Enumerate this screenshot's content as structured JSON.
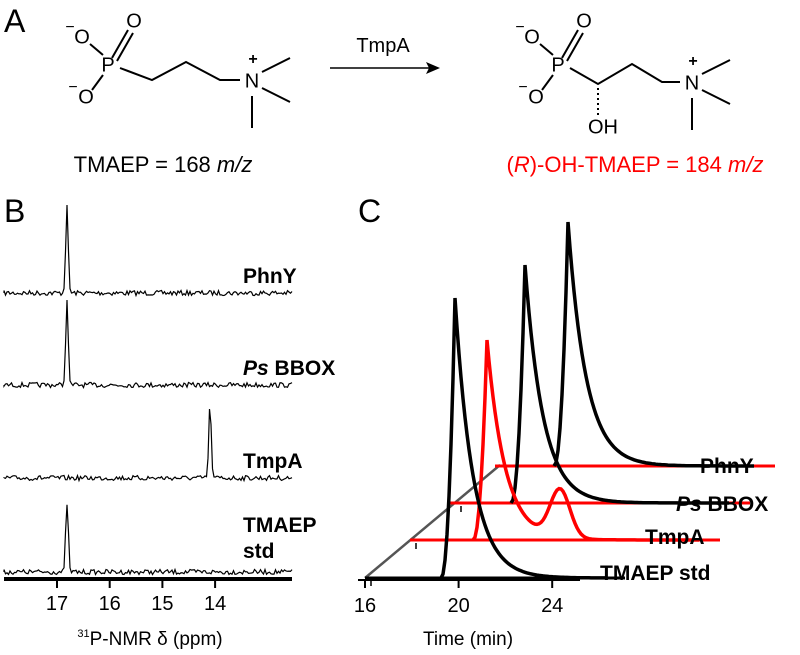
{
  "panel_a": {
    "label": "A",
    "enzyme": "TmpA",
    "substrate": {
      "atoms": [
        "O",
        "P",
        "O",
        "O",
        "N",
        "+",
        "−",
        "−"
      ],
      "name": "TMAEP = 168",
      "unit": "m/z"
    },
    "product": {
      "atoms": [
        "O",
        "P",
        "O",
        "O",
        "N",
        "+",
        "−",
        "−",
        "OH"
      ],
      "name_open": "(",
      "name_r": "R",
      "name_rest": ")-OH-TMAEP = 184",
      "unit": "m/z"
    }
  },
  "panel_b": {
    "label": "B",
    "traces": [
      {
        "name": "PhnY"
      },
      {
        "name_italic": "Ps",
        "name": "BBOX"
      },
      {
        "name": "TmpA"
      },
      {
        "name": "TMAEP",
        "name_line2": "std"
      }
    ],
    "xticks": [
      17,
      16,
      15,
      14
    ],
    "xlabel_sup": "31",
    "xlabel": "P-NMR δ (ppm)"
  },
  "panel_c": {
    "label": "C",
    "traces": [
      {
        "name": "PhnY"
      },
      {
        "name_italic": "Ps",
        "name": "BBOX"
      },
      {
        "name": "TmpA"
      },
      {
        "name": "TMAEP std"
      }
    ],
    "xticks": [
      16,
      20,
      24
    ],
    "xlabel": "Time (min)"
  }
}
